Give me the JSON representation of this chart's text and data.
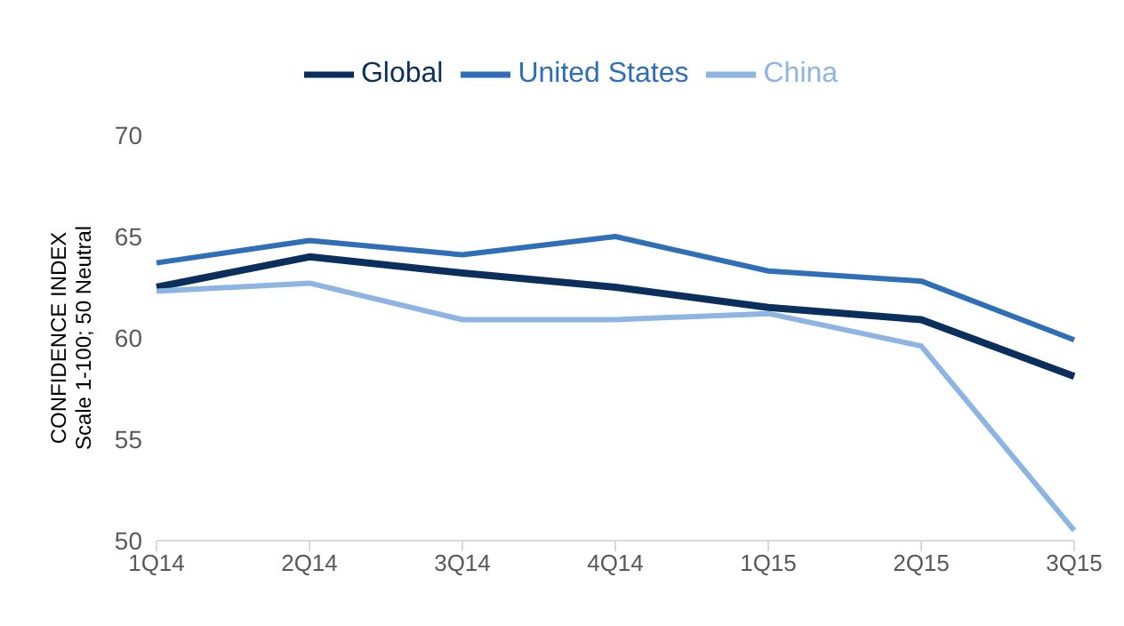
{
  "chart_data": {
    "type": "line",
    "ylabel": "CONFIDENCE INDEX\nScale 1-100; 50 Neutral",
    "categories": [
      "1Q14",
      "2Q14",
      "3Q14",
      "4Q14",
      "1Q15",
      "2Q15",
      "3Q15"
    ],
    "series": [
      {
        "name": "Global",
        "color": "#0b2f5c",
        "values": [
          62.5,
          64.0,
          63.2,
          62.5,
          61.5,
          60.9,
          58.1
        ]
      },
      {
        "name": "United States",
        "color": "#2e6fb7",
        "values": [
          63.7,
          64.8,
          64.1,
          65.0,
          63.3,
          62.8,
          59.9
        ]
      },
      {
        "name": "China",
        "color": "#8db4e2",
        "values": [
          62.3,
          62.7,
          60.9,
          60.9,
          61.2,
          59.6,
          50.5
        ]
      }
    ],
    "ylim": [
      50,
      70
    ],
    "yticks": [
      50,
      55,
      60,
      65,
      70
    ],
    "grid": false,
    "legend": "top",
    "marker": "none",
    "line_style": "solid"
  }
}
